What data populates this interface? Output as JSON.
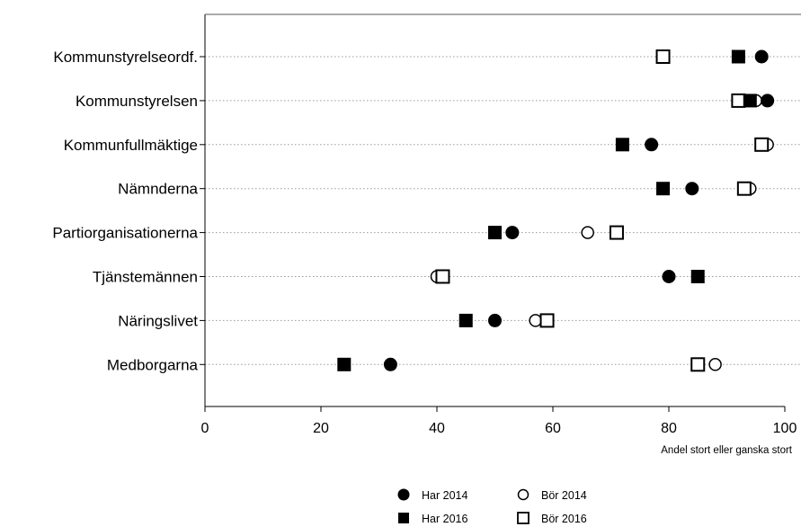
{
  "chart_data": {
    "type": "scatter",
    "title": "",
    "xlabel": "Andel stort eller ganska stort",
    "ylabel": "",
    "xlim": [
      0,
      100
    ],
    "xticks": [
      "0",
      "20",
      "40",
      "60",
      "80",
      "100"
    ],
    "categories": [
      "Kommunstyrelseordf.",
      "Kommunstyrelsen",
      "Kommunfullmäktige",
      "Nämnderna",
      "Partiorganisationerna",
      "Tjänstemännen",
      "Näringslivet",
      "Medborgarna"
    ],
    "series": [
      {
        "name": "Har 2014",
        "marker": "filled-circle",
        "values": [
          96,
          97,
          77,
          84,
          53,
          80,
          50,
          32
        ]
      },
      {
        "name": "Har 2016",
        "marker": "filled-square",
        "values": [
          92,
          94,
          72,
          79,
          50,
          85,
          45,
          24
        ]
      },
      {
        "name": "Bör 2014",
        "marker": "open-circle",
        "values": [
          79,
          95,
          97,
          94,
          66,
          40,
          57,
          88
        ]
      },
      {
        "name": "Bör 2016",
        "marker": "open-square",
        "values": [
          79,
          92,
          96,
          93,
          71,
          41,
          59,
          85
        ]
      }
    ],
    "grid": "dotted horizontal",
    "legend_position": "bottom"
  }
}
